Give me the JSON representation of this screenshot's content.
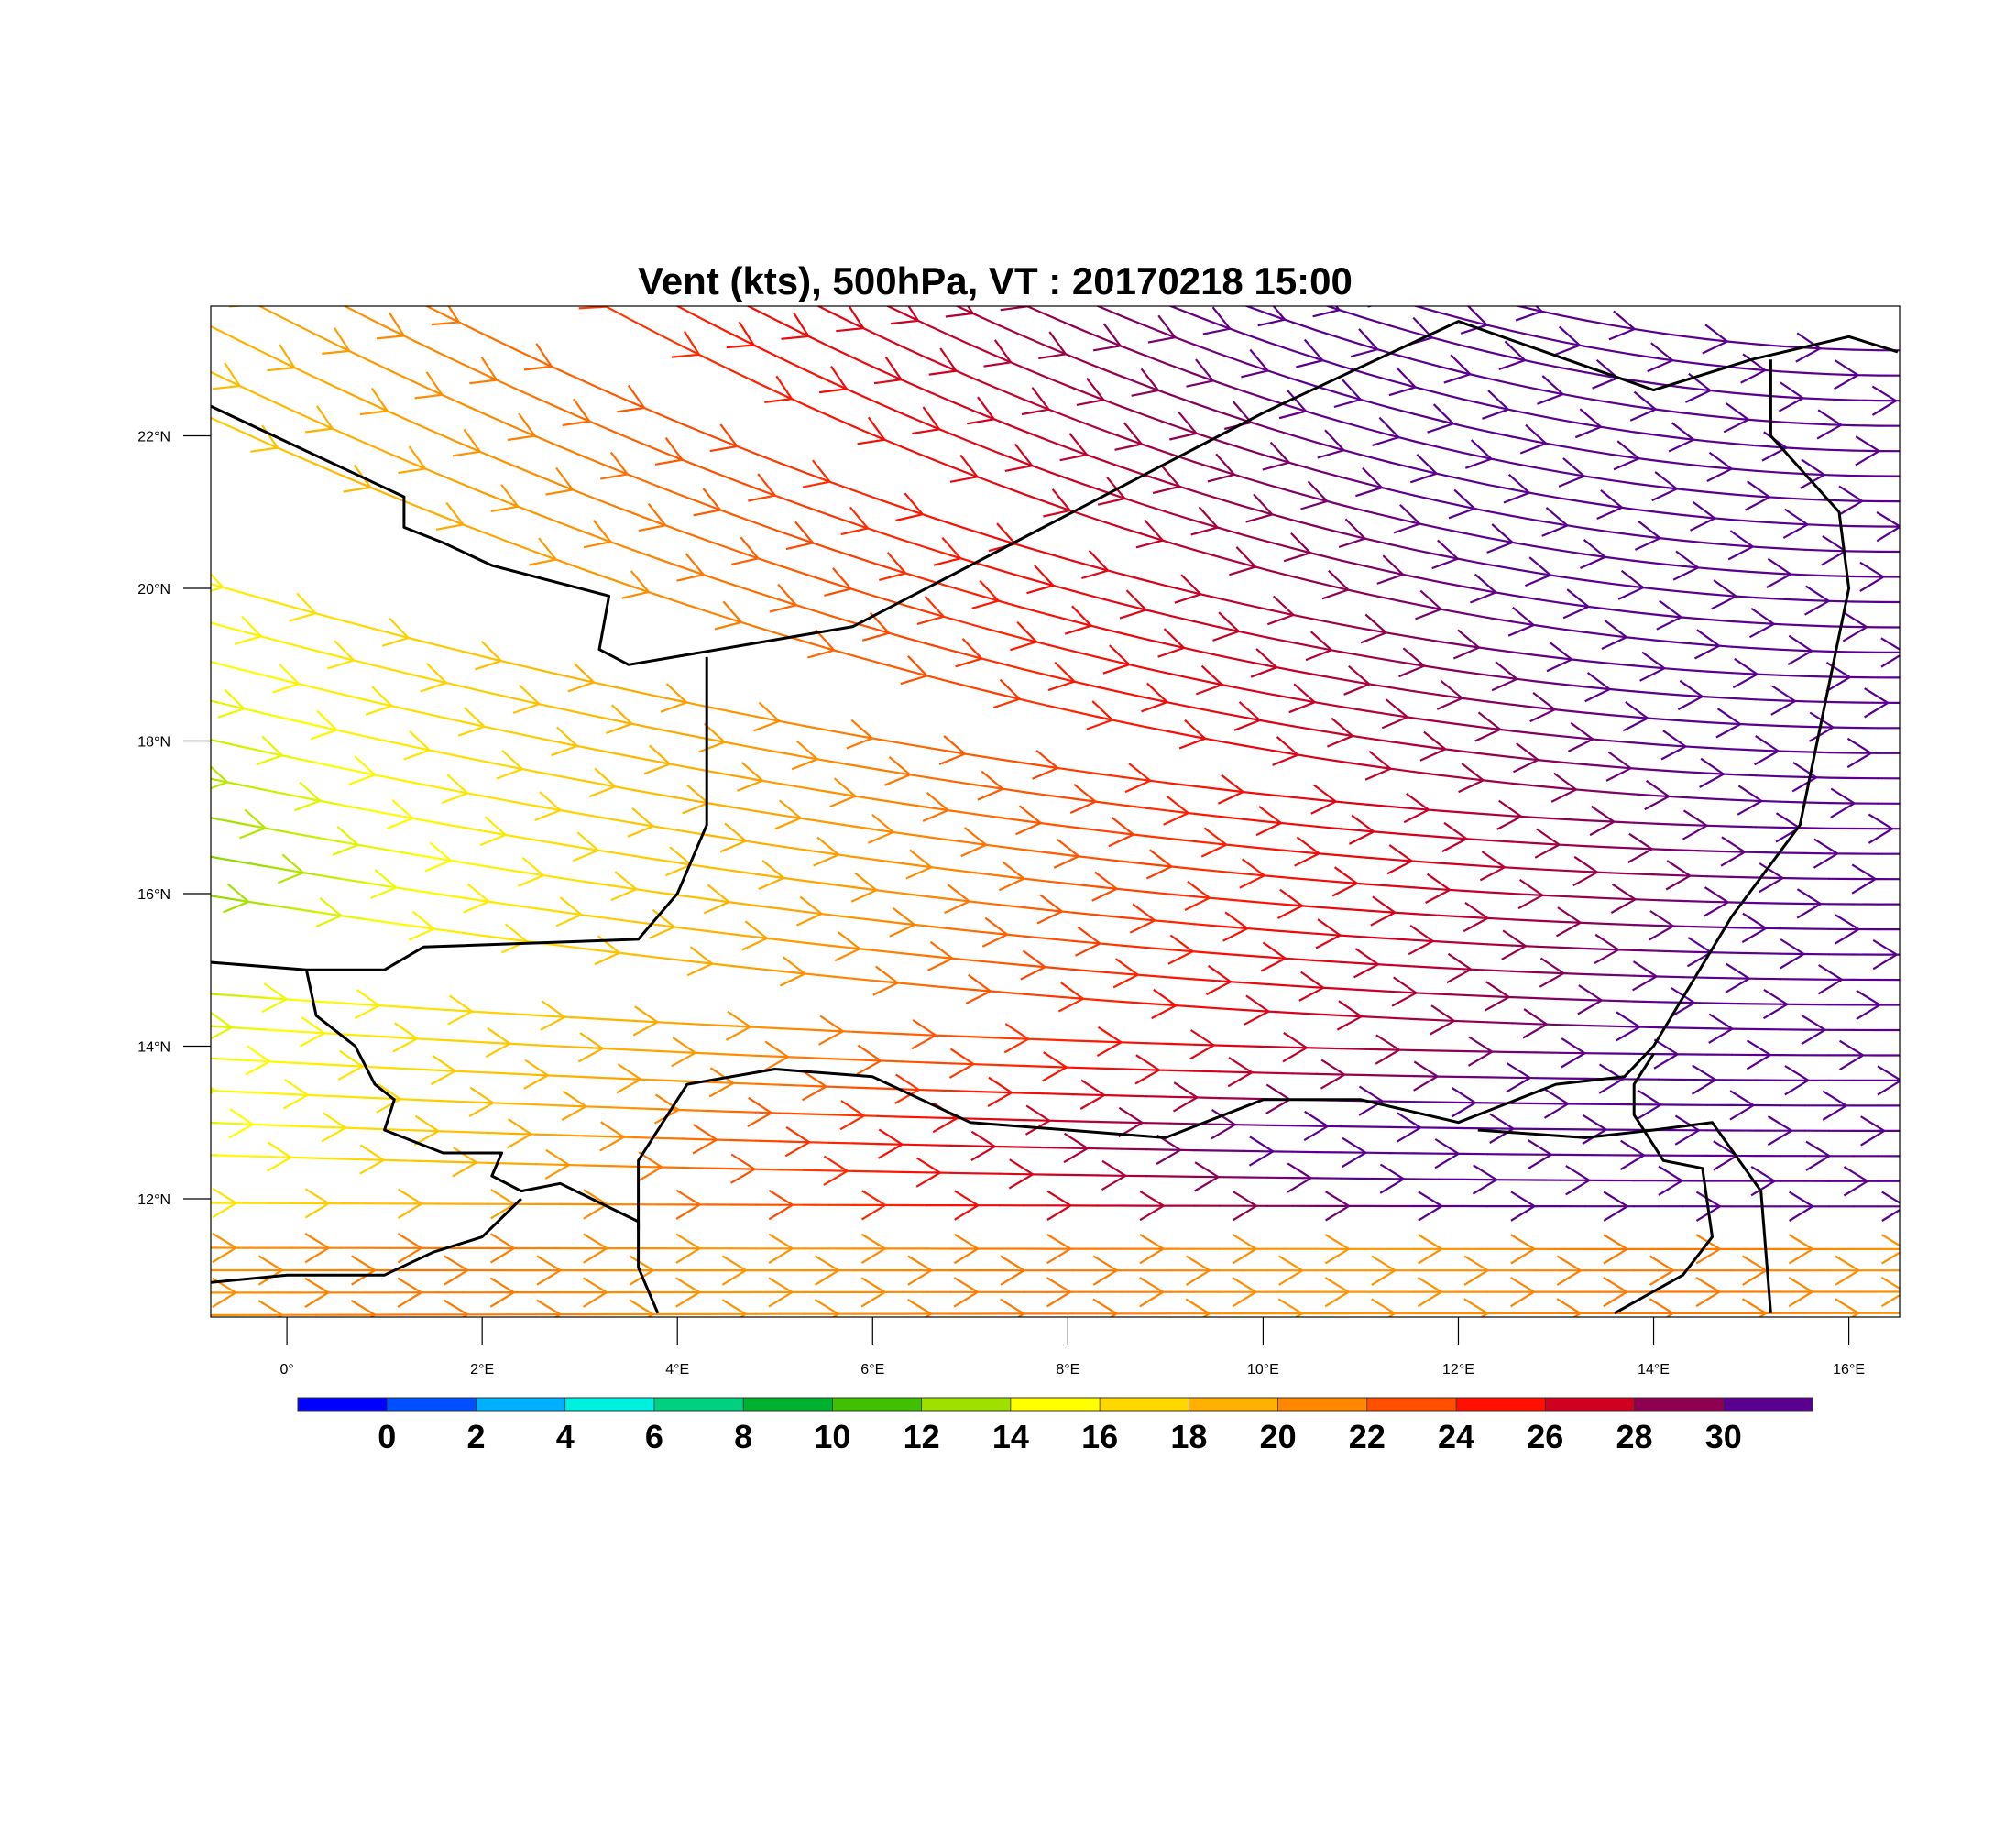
{
  "title": "Vent (kts), 500hPa, VT : 20170218  15:00",
  "map": {
    "lon_range": [
      -0.78,
      16.52
    ],
    "lat_range": [
      10.45,
      23.7
    ],
    "lat_ticks": [
      {
        "value": 12,
        "label": "12°N"
      },
      {
        "value": 14,
        "label": "14°N"
      },
      {
        "value": 16,
        "label": "16°N"
      },
      {
        "value": 18,
        "label": "18°N"
      },
      {
        "value": 20,
        "label": "20°N"
      },
      {
        "value": 22,
        "label": "22°N"
      }
    ],
    "lon_ticks": [
      {
        "value": 0,
        "label": "0°"
      },
      {
        "value": 2,
        "label": "2°E"
      },
      {
        "value": 4,
        "label": "4°E"
      },
      {
        "value": 6,
        "label": "6°E"
      },
      {
        "value": 8,
        "label": "8°E"
      },
      {
        "value": 10,
        "label": "10°E"
      },
      {
        "value": 12,
        "label": "12°E"
      },
      {
        "value": 14,
        "label": "14°E"
      },
      {
        "value": 16,
        "label": "16°E"
      }
    ],
    "borders": [
      [
        [
          -0.8,
          22.4
        ],
        [
          1.2,
          21.2
        ],
        [
          1.2,
          20.8
        ],
        [
          1.6,
          20.6
        ],
        [
          2.1,
          20.3
        ],
        [
          3.3,
          19.9
        ],
        [
          3.2,
          19.2
        ],
        [
          3.5,
          19.0
        ],
        [
          5.8,
          19.5
        ],
        [
          10.0,
          22.3
        ],
        [
          12.0,
          23.5
        ],
        [
          14.0,
          22.6
        ],
        [
          15.0,
          23.0
        ],
        [
          16.0,
          23.3
        ],
        [
          16.5,
          23.1
        ]
      ],
      [
        [
          4.3,
          19.1
        ],
        [
          4.3,
          16.9
        ],
        [
          4.0,
          16.0
        ],
        [
          3.6,
          15.4
        ],
        [
          1.4,
          15.3
        ],
        [
          1.0,
          15.0
        ],
        [
          0.2,
          15.0
        ],
        [
          -0.8,
          15.1
        ]
      ],
      [
        [
          0.2,
          15.0
        ],
        [
          0.3,
          14.4
        ],
        [
          0.7,
          14.0
        ],
        [
          0.9,
          13.5
        ],
        [
          1.1,
          13.3
        ],
        [
          1.0,
          12.9
        ],
        [
          1.6,
          12.6
        ],
        [
          2.2,
          12.6
        ],
        [
          2.1,
          12.3
        ],
        [
          2.4,
          12.1
        ],
        [
          2.8,
          12.2
        ],
        [
          3.6,
          11.7
        ],
        [
          3.6,
          11.1
        ],
        [
          3.8,
          10.5
        ]
      ],
      [
        [
          -0.8,
          10.9
        ],
        [
          0.0,
          11.0
        ],
        [
          1.0,
          11.0
        ],
        [
          1.5,
          11.3
        ],
        [
          2.0,
          11.5
        ],
        [
          2.4,
          12.0
        ]
      ],
      [
        [
          3.6,
          11.6
        ],
        [
          3.6,
          12.5
        ],
        [
          4.1,
          13.5
        ],
        [
          5.0,
          13.7
        ],
        [
          6.0,
          13.6
        ],
        [
          7.0,
          13.0
        ],
        [
          8.0,
          12.9
        ],
        [
          9.0,
          12.8
        ],
        [
          10.0,
          13.3
        ],
        [
          11.0,
          13.3
        ],
        [
          12.0,
          13.0
        ],
        [
          13.0,
          13.5
        ],
        [
          13.7,
          13.6
        ],
        [
          14.0,
          14.0
        ],
        [
          14.8,
          15.7
        ],
        [
          15.5,
          16.9
        ],
        [
          16.0,
          20.0
        ],
        [
          15.9,
          21.0
        ],
        [
          15.2,
          22.0
        ],
        [
          15.2,
          23.0
        ]
      ],
      [
        [
          12.2,
          12.9
        ],
        [
          13.3,
          12.8
        ],
        [
          14.0,
          12.9
        ],
        [
          14.6,
          13.0
        ],
        [
          15.1,
          12.1
        ],
        [
          15.2,
          10.5
        ]
      ],
      [
        [
          14.0,
          13.9
        ],
        [
          13.8,
          13.5
        ],
        [
          13.8,
          13.1
        ],
        [
          14.1,
          12.5
        ],
        [
          14.5,
          12.4
        ],
        [
          14.6,
          11.5
        ],
        [
          14.3,
          11.0
        ],
        [
          13.6,
          10.5
        ]
      ]
    ]
  },
  "legend": {
    "units": "kts",
    "colors": [
      "#0000ff",
      "#0050ff",
      "#00b0ff",
      "#00f0e0",
      "#00d080",
      "#00b030",
      "#40c000",
      "#a0e000",
      "#ffff00",
      "#ffd800",
      "#ffb000",
      "#ff8800",
      "#ff5000",
      "#ff1000",
      "#d00020",
      "#900050",
      "#5a0090"
    ],
    "labels": [
      "0",
      "2",
      "4",
      "6",
      "8",
      "10",
      "12",
      "14",
      "16",
      "18",
      "20",
      "22",
      "24",
      "26",
      "28",
      "30"
    ]
  }
}
